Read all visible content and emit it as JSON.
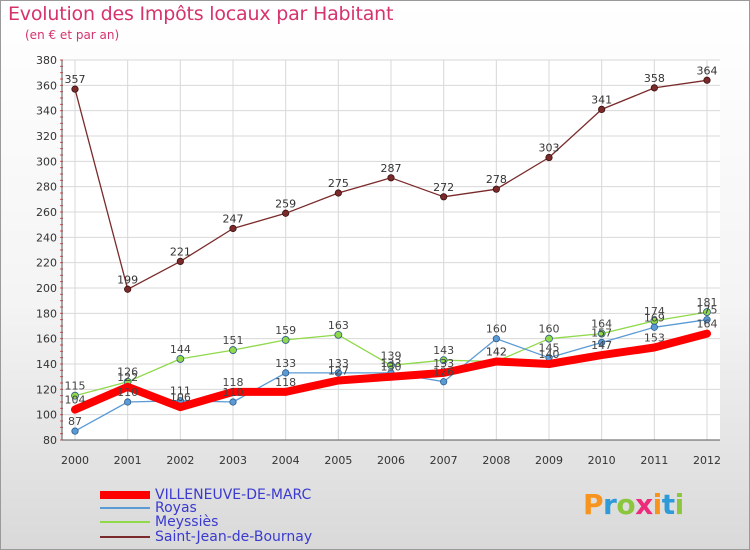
{
  "header": {
    "title": "Evolution des Impôts locaux par Habitant",
    "subtitle": "(en € et par an)"
  },
  "logo": {
    "text": "Proxiti",
    "letters": [
      {
        "ch": "P",
        "color": "#f7941d"
      },
      {
        "ch": "r",
        "color": "#2e9ad8"
      },
      {
        "ch": "o",
        "color": "#8cc63f"
      },
      {
        "ch": "x",
        "color": "#ee2a7b"
      },
      {
        "ch": "i",
        "color": "#f7941d"
      },
      {
        "ch": "t",
        "color": "#2e9ad8"
      },
      {
        "ch": "i",
        "color": "#8cc63f"
      }
    ]
  },
  "chart_data": {
    "type": "line",
    "title": "Evolution des Impôts locaux par Habitant",
    "subtitle": "(en € et par an)",
    "xlabel": "",
    "ylabel": "",
    "x": [
      "2000",
      "2001",
      "2002",
      "2003",
      "2004",
      "2005",
      "2006",
      "2007",
      "2008",
      "2009",
      "2010",
      "2011",
      "2012"
    ],
    "ylim": [
      80,
      380
    ],
    "yticks": [
      "80",
      "100",
      "120",
      "140",
      "160",
      "180",
      "200",
      "220",
      "240",
      "260",
      "280",
      "300",
      "320",
      "340",
      "360",
      "380"
    ],
    "grid": true,
    "legend_position": "bottom-left",
    "series": [
      {
        "name": "VILLENEUVE-DE-MARC",
        "color": "#ff0000",
        "values": [
          104,
          122,
          106,
          118,
          118,
          127,
          130,
          133,
          142,
          140,
          147,
          153,
          164
        ],
        "labels": [
          "104",
          "122",
          "106",
          "118",
          "118",
          "127",
          "130",
          "133",
          "142",
          "140",
          "147",
          "153",
          "164"
        ]
      },
      {
        "name": "Royas",
        "color": "#5b9bd5",
        "values": [
          87,
          110,
          111,
          110,
          133,
          133,
          133,
          126,
          160,
          145,
          157,
          169,
          175
        ],
        "labels": [
          "87",
          "110",
          "111",
          "110",
          "133",
          "133",
          "133",
          "126",
          "160",
          "145",
          "157",
          "169",
          "175"
        ]
      },
      {
        "name": "Meyssiès",
        "color": "#8fd94a",
        "values": [
          115,
          126,
          144,
          151,
          159,
          163,
          139,
          143,
          142,
          160,
          164,
          174,
          181
        ],
        "labels": [
          "115",
          "126",
          "144",
          "151",
          "159",
          "163",
          "139",
          "143",
          "142",
          "160",
          "164",
          "174",
          "181"
        ]
      },
      {
        "name": "Saint-Jean-de-Bournay",
        "color": "#7a2a2a",
        "values": [
          357,
          199,
          221,
          247,
          259,
          275,
          287,
          272,
          278,
          303,
          341,
          358,
          364
        ],
        "labels": [
          "357",
          "199",
          "221",
          "247",
          "259",
          "275",
          "287",
          "272",
          "278",
          "303",
          "341",
          "358",
          "364"
        ]
      }
    ]
  }
}
